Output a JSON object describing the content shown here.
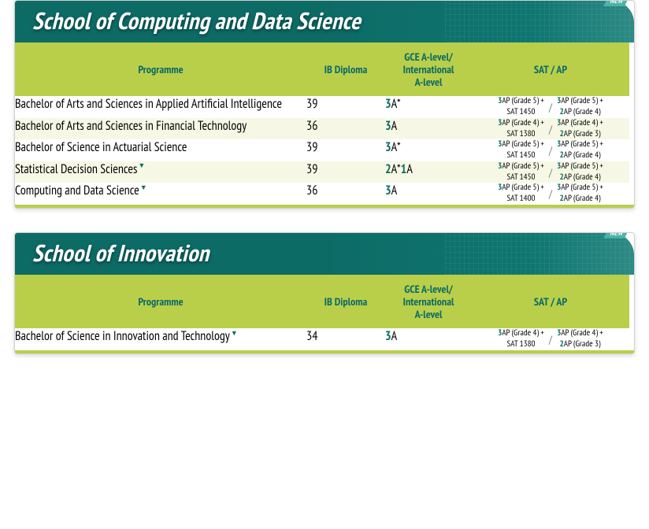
{
  "colors": {
    "teal": "#0d6b66",
    "lime": "#b9cf4a",
    "badge": "#4bb3a8",
    "text": "#333333",
    "altRow": "#f6f8e5"
  },
  "sections": [
    {
      "title": "School of Computing and Data Science",
      "columns": [
        "Programme",
        "IB Diploma",
        "GCE A-level/\nInternational\nA-level",
        "SAT / AP"
      ],
      "rows": [
        {
          "programme": "Bachelor of Arts and Sciences in Applied Artificial Intelligence",
          "ib": "39",
          "gce_lead": "3",
          "gce_rest": "A*",
          "sat_a1_lead": "3",
          "sat_a1_rest": "AP (Grade 5) +",
          "sat_a1_line2": "SAT 1450",
          "sat_b1_lead": "3",
          "sat_b1_rest": "AP (Grade 5) +",
          "sat_b2_lead": "2",
          "sat_b2_rest": "AP (Grade 4)",
          "new": false,
          "marker": false
        },
        {
          "programme": "Bachelor of Arts and Sciences in Financial Technology",
          "ib": "36",
          "gce_lead": "3",
          "gce_rest": "A",
          "sat_a1_lead": "3",
          "sat_a1_rest": "AP (Grade 4) +",
          "sat_a1_line2": "SAT 1380",
          "sat_b1_lead": "3",
          "sat_b1_rest": "AP (Grade 4) +",
          "sat_b2_lead": "2",
          "sat_b2_rest": "AP (Grade 3)",
          "new": false,
          "marker": false
        },
        {
          "programme": "Bachelor of Science in Actuarial Science",
          "ib": "39",
          "gce_lead": "3",
          "gce_rest": "A*",
          "sat_a1_lead": "3",
          "sat_a1_rest": "AP (Grade 5) +",
          "sat_a1_line2": "SAT 1450",
          "sat_b1_lead": "3",
          "sat_b1_rest": "AP (Grade 5) +",
          "sat_b2_lead": "2",
          "sat_b2_rest": "AP (Grade 4)",
          "new": false,
          "marker": false
        },
        {
          "programme": "Statistical Decision Sciences",
          "ib": "39",
          "gce_lead": "2",
          "gce_rest": "A*",
          "gce_lead2": "1",
          "gce_rest2": "A",
          "sat_a1_lead": "3",
          "sat_a1_rest": "AP (Grade 5) +",
          "sat_a1_line2": "SAT 1450",
          "sat_b1_lead": "3",
          "sat_b1_rest": "AP (Grade 5) +",
          "sat_b2_lead": "2",
          "sat_b2_rest": "AP (Grade 4)",
          "new": true,
          "marker": true
        },
        {
          "programme": "Computing and Data Science",
          "ib": "36",
          "gce_lead": "3",
          "gce_rest": "A",
          "sat_a1_lead": "3",
          "sat_a1_rest": "AP (Grade 5) +",
          "sat_a1_line2": "SAT 1400",
          "sat_b1_lead": "3",
          "sat_b1_rest": "AP (Grade 5) +",
          "sat_b2_lead": "2",
          "sat_b2_rest": "AP (Grade 4)",
          "new": true,
          "marker": true
        }
      ]
    },
    {
      "title": "School of Innovation",
      "columns": [
        "Programme",
        "IB Diploma",
        "GCE A-level/\nInternational\nA-level",
        "SAT / AP"
      ],
      "rows": [
        {
          "programme": "Bachelor of Science in Innovation and Technology",
          "ib": "34",
          "gce_lead": "3",
          "gce_rest": "A",
          "sat_a1_lead": "3",
          "sat_a1_rest": "AP (Grade 4) +",
          "sat_a1_line2": "SAT 1380",
          "sat_b1_lead": "3",
          "sat_b1_rest": "AP (Grade 4) +",
          "sat_b2_lead": "2",
          "sat_b2_rest": "AP (Grade 3)",
          "new": true,
          "marker": true
        }
      ]
    }
  ],
  "badgeLabel": "NEW"
}
